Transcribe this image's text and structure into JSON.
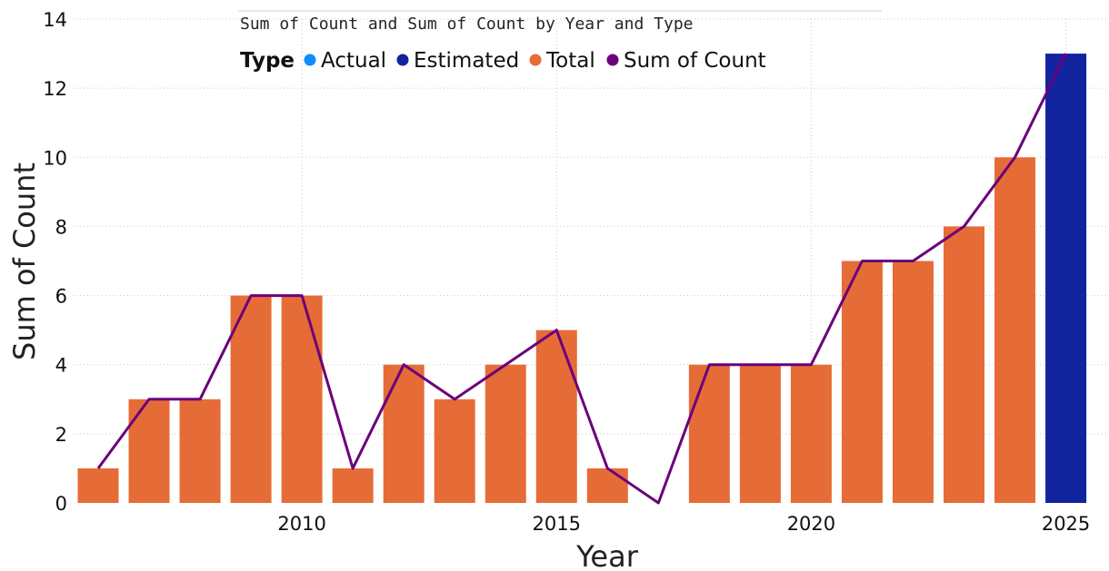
{
  "chart_data": {
    "type": "bar",
    "title": "Sum of Count and Sum of Count by Year and Type",
    "xlabel": "Year",
    "ylabel": "Sum of Count",
    "ylim": [
      0,
      14
    ],
    "yticks": [
      0,
      2,
      4,
      6,
      8,
      10,
      12,
      14
    ],
    "xticks": [
      2010,
      2015,
      2020,
      2025
    ],
    "xlim": [
      2006,
      2025
    ],
    "legend": {
      "title": "Type",
      "position": "top",
      "items": [
        {
          "label": "Actual",
          "color": "#118DFF"
        },
        {
          "label": "Estimated",
          "color": "#12239E"
        },
        {
          "label": "Total",
          "color": "#E66C37"
        },
        {
          "label": "Sum of Count",
          "color": "#6B007B"
        }
      ]
    },
    "bars": [
      {
        "year": 2006,
        "value": 1,
        "type": "Total"
      },
      {
        "year": 2007,
        "value": 3,
        "type": "Total"
      },
      {
        "year": 2008,
        "value": 3,
        "type": "Total"
      },
      {
        "year": 2009,
        "value": 6,
        "type": "Total"
      },
      {
        "year": 2010,
        "value": 6,
        "type": "Total"
      },
      {
        "year": 2011,
        "value": 1,
        "type": "Total"
      },
      {
        "year": 2012,
        "value": 4,
        "type": "Total"
      },
      {
        "year": 2013,
        "value": 3,
        "type": "Total"
      },
      {
        "year": 2014,
        "value": 4,
        "type": "Total"
      },
      {
        "year": 2015,
        "value": 5,
        "type": "Total"
      },
      {
        "year": 2016,
        "value": 1,
        "type": "Total"
      },
      {
        "year": 2018,
        "value": 4,
        "type": "Total"
      },
      {
        "year": 2019,
        "value": 4,
        "type": "Total"
      },
      {
        "year": 2020,
        "value": 4,
        "type": "Total"
      },
      {
        "year": 2021,
        "value": 7,
        "type": "Total"
      },
      {
        "year": 2022,
        "value": 7,
        "type": "Total"
      },
      {
        "year": 2023,
        "value": 8,
        "type": "Total"
      },
      {
        "year": 2024,
        "value": 10,
        "type": "Total"
      },
      {
        "year": 2025,
        "value": 13,
        "type": "Estimated"
      }
    ],
    "line": {
      "name": "Sum of Count",
      "x": [
        2006,
        2007,
        2008,
        2009,
        2010,
        2011,
        2012,
        2013,
        2014,
        2015,
        2016,
        2017,
        2018,
        2019,
        2020,
        2021,
        2022,
        2023,
        2024,
        2025
      ],
      "y": [
        1,
        3,
        3,
        6,
        6,
        1,
        4,
        3,
        4,
        5,
        1,
        0,
        4,
        4,
        4,
        7,
        7,
        8,
        10,
        13
      ]
    }
  }
}
